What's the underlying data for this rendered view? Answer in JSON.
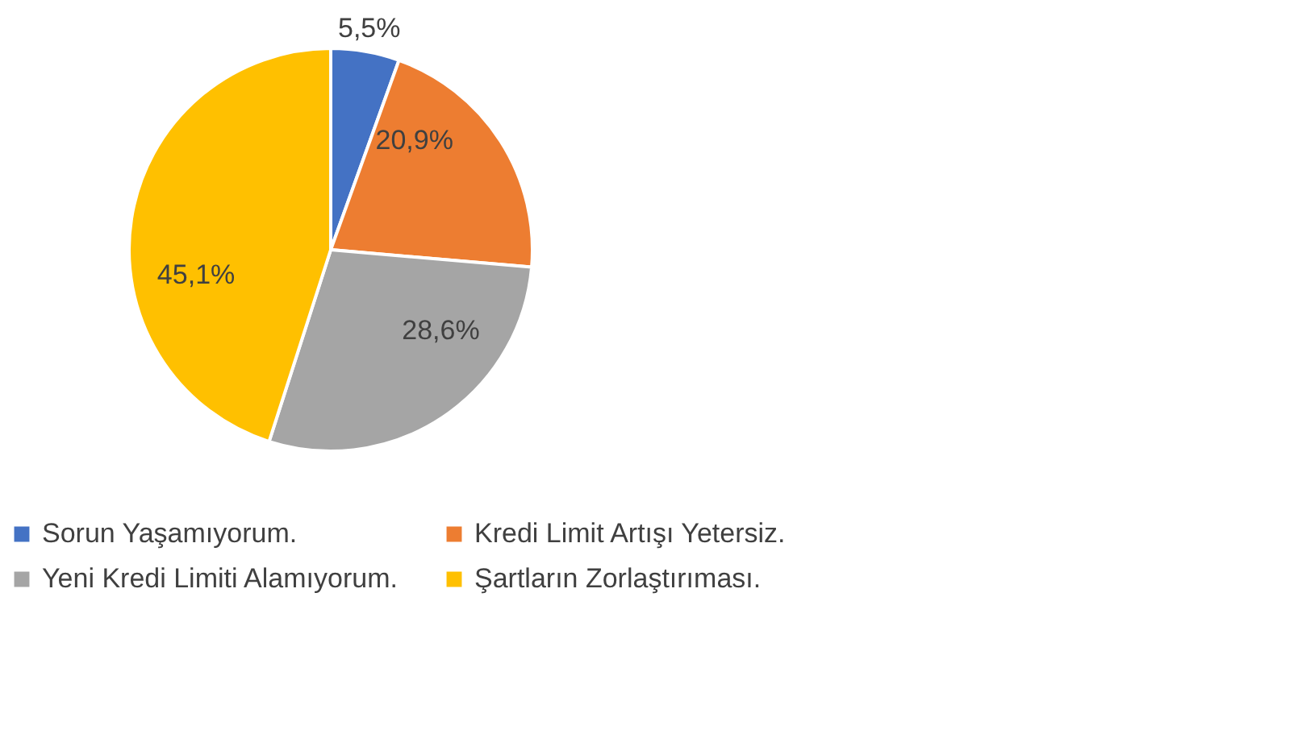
{
  "chart_data": {
    "type": "pie",
    "categories": [
      "Sorun Yaşamıyorum.",
      "Kredi Limit Artışı Yetersiz.",
      "Yeni Kredi Limiti Alamıyorum.",
      "Şartların Zorlaştırıması."
    ],
    "values": [
      5.5,
      20.9,
      28.6,
      45.1
    ],
    "colors": [
      "#4472c4",
      "#ed7d31",
      "#a5a5a5",
      "#ffc000"
    ],
    "value_labels": [
      "5,5%",
      "20,9%",
      "28,6%",
      "45,1%"
    ],
    "legend": "bottom"
  }
}
